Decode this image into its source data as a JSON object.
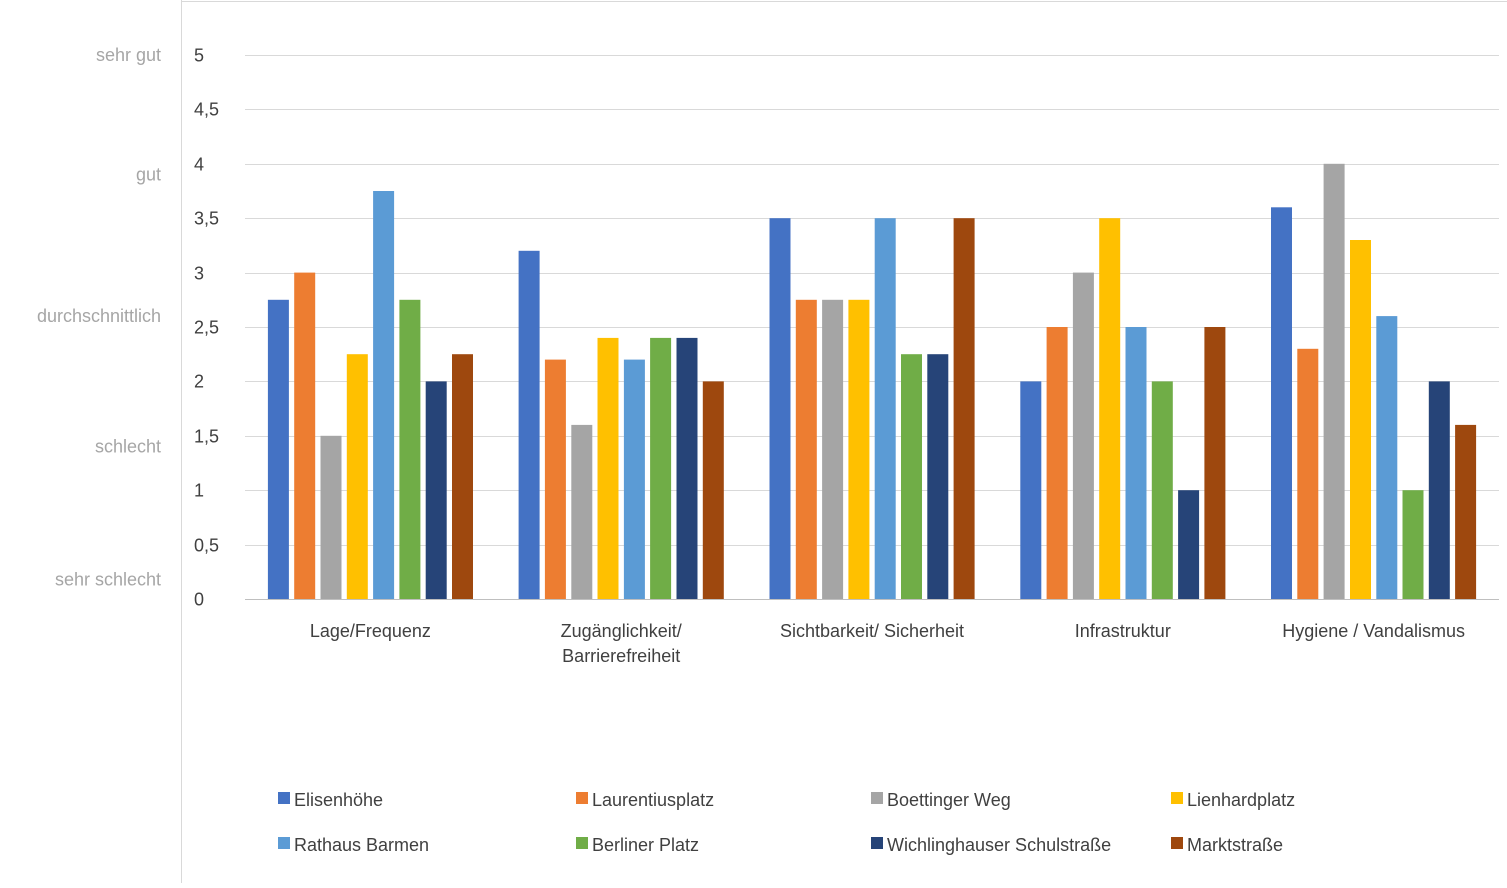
{
  "chart_data": {
    "type": "bar",
    "categories": [
      [
        "Lage/Frequenz"
      ],
      [
        "Zugänglichkeit/",
        "Barrierefreiheit"
      ],
      [
        "Sichtbarkeit/ Sicherheit"
      ],
      [
        "Infrastruktur"
      ],
      [
        "Hygiene / Vandalismus"
      ]
    ],
    "series": [
      {
        "name": "Elisenhöhe",
        "color": "#4472C4",
        "values": [
          2.75,
          3.2,
          3.5,
          2.0,
          3.6
        ]
      },
      {
        "name": "Laurentiusplatz",
        "color": "#ED7D31",
        "values": [
          3.0,
          2.2,
          2.75,
          2.5,
          2.3
        ]
      },
      {
        "name": "Boettinger Weg",
        "color": "#A5A5A5",
        "values": [
          1.5,
          1.6,
          2.75,
          3.0,
          4.0
        ]
      },
      {
        "name": "Lienhardplatz",
        "color": "#FFC000",
        "values": [
          2.25,
          2.4,
          2.75,
          3.5,
          3.3
        ]
      },
      {
        "name": "Rathaus Barmen",
        "color": "#5B9BD5",
        "values": [
          3.75,
          2.2,
          3.5,
          2.5,
          2.6
        ]
      },
      {
        "name": "Berliner Platz",
        "color": "#70AD47",
        "values": [
          2.75,
          2.4,
          2.25,
          2.0,
          1.0
        ]
      },
      {
        "name": "Wichlinghauser Schulstraße",
        "color": "#264478",
        "values": [
          2.0,
          2.4,
          2.25,
          1.0,
          2.0
        ]
      },
      {
        "name": "Marktstraße",
        "color": "#9E480E",
        "values": [
          2.25,
          2.0,
          3.5,
          2.5,
          1.6
        ]
      }
    ],
    "ylim": [
      0,
      5
    ],
    "yticks": [
      "0",
      "0,5",
      "1",
      "1,5",
      "2",
      "2,5",
      "3",
      "3,5",
      "4",
      "4,5",
      "5"
    ],
    "rating_labels": [
      {
        "label": "sehr gut",
        "value": 5
      },
      {
        "label": "gut",
        "value": 3.9
      },
      {
        "label": "durchschnittlich",
        "value": 2.6
      },
      {
        "label": "schlecht",
        "value": 1.4
      },
      {
        "label": "sehr schlecht",
        "value": 0.18
      }
    ],
    "grid": true,
    "legend_position": "bottom"
  }
}
